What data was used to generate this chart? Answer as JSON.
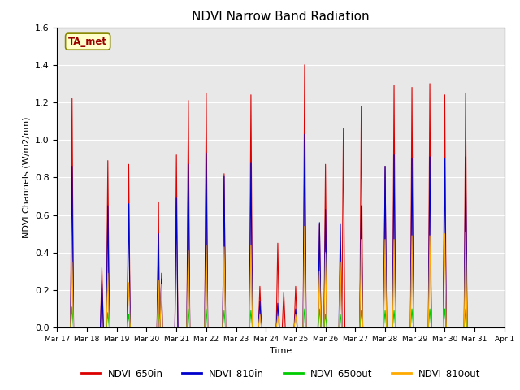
{
  "title": "NDVI Narrow Band Radiation",
  "xlabel": "Time",
  "ylabel": "NDVI Channels (W/m2/nm)",
  "ylim": [
    0,
    1.6
  ],
  "annotation_label": "TA_met",
  "legend_entries": [
    "NDVI_650in",
    "NDVI_810in",
    "NDVI_650out",
    "NDVI_810out"
  ],
  "line_colors": [
    "#dd0000",
    "#0000cc",
    "#00cc00",
    "#ffaa00"
  ],
  "background_color": "#e8e8e8",
  "x_tick_labels": [
    "Mar 17",
    "Mar 18",
    "Mar 19",
    "Mar 20",
    "Mar 21",
    "Mar 22",
    "Mar 23",
    "Mar 24",
    "Mar 25",
    "Mar 26",
    "Mar 27",
    "Mar 28",
    "Mar 29",
    "Mar 30",
    "Mar 31",
    "Apr 1"
  ],
  "x_tick_days": [
    17,
    18,
    19,
    20,
    21,
    22,
    23,
    24,
    25,
    26,
    27,
    28,
    29,
    30,
    31,
    32
  ],
  "series_650in": [
    [
      17.0,
      0.0
    ],
    [
      17.45,
      0.0
    ],
    [
      17.5,
      1.22
    ],
    [
      17.55,
      0.0
    ],
    [
      18.0,
      0.0
    ],
    [
      18.45,
      0.0
    ],
    [
      18.5,
      0.32
    ],
    [
      18.55,
      0.0
    ],
    [
      18.65,
      0.0
    ],
    [
      18.7,
      0.89
    ],
    [
      18.75,
      0.0
    ],
    [
      19.0,
      0.0
    ],
    [
      19.35,
      0.0
    ],
    [
      19.4,
      0.87
    ],
    [
      19.45,
      0.0
    ],
    [
      19.9,
      0.0
    ],
    [
      20.35,
      0.0
    ],
    [
      20.4,
      0.67
    ],
    [
      20.43,
      0.0
    ],
    [
      20.45,
      0.0
    ],
    [
      20.5,
      0.29
    ],
    [
      20.53,
      0.0
    ],
    [
      20.9,
      0.0
    ],
    [
      20.95,
      0.0
    ],
    [
      21.0,
      0.92
    ],
    [
      21.05,
      0.0
    ],
    [
      21.15,
      0.0
    ],
    [
      21.2,
      0.0
    ],
    [
      21.35,
      0.0
    ],
    [
      21.4,
      1.21
    ],
    [
      21.45,
      0.0
    ],
    [
      21.55,
      0.0
    ],
    [
      21.6,
      0.0
    ],
    [
      21.95,
      0.0
    ],
    [
      22.0,
      1.25
    ],
    [
      22.05,
      0.0
    ],
    [
      22.25,
      0.0
    ],
    [
      22.3,
      0.0
    ],
    [
      22.55,
      0.0
    ],
    [
      22.6,
      0.82
    ],
    [
      22.65,
      0.0
    ],
    [
      23.0,
      0.0
    ],
    [
      23.45,
      0.0
    ],
    [
      23.5,
      1.24
    ],
    [
      23.55,
      0.0
    ],
    [
      23.75,
      0.0
    ],
    [
      23.8,
      0.22
    ],
    [
      23.85,
      0.0
    ],
    [
      24.0,
      0.0
    ],
    [
      24.35,
      0.0
    ],
    [
      24.4,
      0.45
    ],
    [
      24.45,
      0.0
    ],
    [
      24.55,
      0.0
    ],
    [
      24.6,
      0.19
    ],
    [
      24.65,
      0.0
    ],
    [
      24.8,
      0.0
    ],
    [
      24.95,
      0.0
    ],
    [
      25.0,
      0.22
    ],
    [
      25.05,
      0.0
    ],
    [
      25.25,
      0.0
    ],
    [
      25.3,
      1.4
    ],
    [
      25.35,
      0.0
    ],
    [
      25.5,
      0.0
    ],
    [
      25.75,
      0.0
    ],
    [
      25.8,
      0.55
    ],
    [
      25.85,
      0.0
    ],
    [
      25.95,
      0.0
    ],
    [
      26.0,
      0.87
    ],
    [
      26.05,
      0.0
    ],
    [
      26.25,
      0.0
    ],
    [
      26.3,
      0.0
    ],
    [
      26.55,
      0.0
    ],
    [
      26.6,
      1.06
    ],
    [
      26.65,
      0.0
    ],
    [
      26.9,
      0.0
    ],
    [
      27.15,
      0.0
    ],
    [
      27.2,
      1.18
    ],
    [
      27.25,
      0.0
    ],
    [
      27.6,
      0.0
    ],
    [
      27.95,
      0.0
    ],
    [
      28.0,
      0.86
    ],
    [
      28.05,
      0.0
    ],
    [
      28.25,
      0.0
    ],
    [
      28.3,
      1.29
    ],
    [
      28.35,
      0.0
    ],
    [
      28.6,
      0.0
    ],
    [
      28.85,
      0.0
    ],
    [
      28.9,
      1.28
    ],
    [
      28.95,
      0.0
    ],
    [
      29.2,
      0.0
    ],
    [
      29.45,
      0.0
    ],
    [
      29.5,
      1.3
    ],
    [
      29.55,
      0.0
    ],
    [
      29.7,
      0.0
    ],
    [
      29.95,
      0.0
    ],
    [
      30.0,
      1.24
    ],
    [
      30.05,
      0.0
    ],
    [
      30.3,
      0.0
    ],
    [
      30.65,
      0.0
    ],
    [
      30.7,
      1.25
    ],
    [
      30.75,
      0.0
    ],
    [
      31.0,
      0.0
    ]
  ],
  "series_810in": [
    [
      17.0,
      0.0
    ],
    [
      17.45,
      0.0
    ],
    [
      17.5,
      0.86
    ],
    [
      17.55,
      0.0
    ],
    [
      18.0,
      0.0
    ],
    [
      18.45,
      0.0
    ],
    [
      18.5,
      0.25
    ],
    [
      18.55,
      0.0
    ],
    [
      18.65,
      0.0
    ],
    [
      18.7,
      0.65
    ],
    [
      18.75,
      0.0
    ],
    [
      19.0,
      0.0
    ],
    [
      19.35,
      0.0
    ],
    [
      19.4,
      0.66
    ],
    [
      19.45,
      0.0
    ],
    [
      19.9,
      0.0
    ],
    [
      20.35,
      0.0
    ],
    [
      20.4,
      0.5
    ],
    [
      20.43,
      0.0
    ],
    [
      20.45,
      0.0
    ],
    [
      20.5,
      0.26
    ],
    [
      20.53,
      0.0
    ],
    [
      20.9,
      0.0
    ],
    [
      20.95,
      0.0
    ],
    [
      21.0,
      0.69
    ],
    [
      21.05,
      0.0
    ],
    [
      21.35,
      0.0
    ],
    [
      21.4,
      0.87
    ],
    [
      21.45,
      0.0
    ],
    [
      21.95,
      0.0
    ],
    [
      22.0,
      0.93
    ],
    [
      22.05,
      0.0
    ],
    [
      22.55,
      0.0
    ],
    [
      22.6,
      0.81
    ],
    [
      22.65,
      0.0
    ],
    [
      23.0,
      0.0
    ],
    [
      23.45,
      0.0
    ],
    [
      23.5,
      0.88
    ],
    [
      23.55,
      0.0
    ],
    [
      23.75,
      0.0
    ],
    [
      23.8,
      0.14
    ],
    [
      23.85,
      0.0
    ],
    [
      24.0,
      0.0
    ],
    [
      24.35,
      0.0
    ],
    [
      24.4,
      0.13
    ],
    [
      24.45,
      0.0
    ],
    [
      24.8,
      0.0
    ],
    [
      24.95,
      0.0
    ],
    [
      25.0,
      0.1
    ],
    [
      25.05,
      0.0
    ],
    [
      25.25,
      0.0
    ],
    [
      25.3,
      1.03
    ],
    [
      25.35,
      0.0
    ],
    [
      25.5,
      0.0
    ],
    [
      25.75,
      0.0
    ],
    [
      25.8,
      0.56
    ],
    [
      25.85,
      0.0
    ],
    [
      25.95,
      0.0
    ],
    [
      26.0,
      0.63
    ],
    [
      26.05,
      0.0
    ],
    [
      26.45,
      0.0
    ],
    [
      26.5,
      0.55
    ],
    [
      26.55,
      0.0
    ],
    [
      26.9,
      0.0
    ],
    [
      27.15,
      0.0
    ],
    [
      27.2,
      0.65
    ],
    [
      27.25,
      0.0
    ],
    [
      27.6,
      0.0
    ],
    [
      27.95,
      0.0
    ],
    [
      28.0,
      0.86
    ],
    [
      28.05,
      0.0
    ],
    [
      28.25,
      0.0
    ],
    [
      28.3,
      0.92
    ],
    [
      28.35,
      0.0
    ],
    [
      28.6,
      0.0
    ],
    [
      28.85,
      0.0
    ],
    [
      28.9,
      0.9
    ],
    [
      28.95,
      0.0
    ],
    [
      29.2,
      0.0
    ],
    [
      29.45,
      0.0
    ],
    [
      29.5,
      0.91
    ],
    [
      29.55,
      0.0
    ],
    [
      29.7,
      0.0
    ],
    [
      29.95,
      0.0
    ],
    [
      30.0,
      0.9
    ],
    [
      30.05,
      0.0
    ],
    [
      30.3,
      0.0
    ],
    [
      30.65,
      0.0
    ],
    [
      30.7,
      0.91
    ],
    [
      30.75,
      0.0
    ],
    [
      31.0,
      0.0
    ]
  ],
  "series_650out": [
    [
      17.0,
      0.0
    ],
    [
      17.45,
      0.0
    ],
    [
      17.5,
      0.11
    ],
    [
      17.55,
      0.0
    ],
    [
      18.0,
      0.0
    ],
    [
      18.65,
      0.0
    ],
    [
      18.7,
      0.08
    ],
    [
      18.75,
      0.0
    ],
    [
      19.0,
      0.0
    ],
    [
      19.35,
      0.0
    ],
    [
      19.4,
      0.07
    ],
    [
      19.45,
      0.0
    ],
    [
      19.9,
      0.0
    ],
    [
      20.35,
      0.0
    ],
    [
      20.4,
      0.07
    ],
    [
      20.45,
      0.0
    ],
    [
      20.9,
      0.0
    ],
    [
      21.35,
      0.0
    ],
    [
      21.4,
      0.1
    ],
    [
      21.45,
      0.0
    ],
    [
      21.95,
      0.0
    ],
    [
      22.0,
      0.1
    ],
    [
      22.05,
      0.0
    ],
    [
      22.55,
      0.0
    ],
    [
      22.6,
      0.09
    ],
    [
      22.65,
      0.0
    ],
    [
      23.0,
      0.0
    ],
    [
      23.45,
      0.0
    ],
    [
      23.5,
      0.09
    ],
    [
      23.55,
      0.0
    ],
    [
      24.0,
      0.0
    ],
    [
      25.25,
      0.0
    ],
    [
      25.3,
      0.1
    ],
    [
      25.35,
      0.0
    ],
    [
      25.5,
      0.0
    ],
    [
      25.75,
      0.0
    ],
    [
      25.8,
      0.1
    ],
    [
      25.85,
      0.0
    ],
    [
      25.95,
      0.0
    ],
    [
      26.0,
      0.07
    ],
    [
      26.05,
      0.0
    ],
    [
      26.45,
      0.0
    ],
    [
      26.5,
      0.07
    ],
    [
      26.55,
      0.0
    ],
    [
      26.9,
      0.0
    ],
    [
      27.15,
      0.0
    ],
    [
      27.2,
      0.09
    ],
    [
      27.25,
      0.0
    ],
    [
      27.6,
      0.0
    ],
    [
      27.95,
      0.0
    ],
    [
      28.0,
      0.09
    ],
    [
      28.05,
      0.0
    ],
    [
      28.25,
      0.0
    ],
    [
      28.3,
      0.09
    ],
    [
      28.35,
      0.0
    ],
    [
      28.6,
      0.0
    ],
    [
      28.85,
      0.0
    ],
    [
      28.9,
      0.1
    ],
    [
      28.95,
      0.0
    ],
    [
      29.2,
      0.0
    ],
    [
      29.45,
      0.0
    ],
    [
      29.5,
      0.1
    ],
    [
      29.55,
      0.0
    ],
    [
      29.7,
      0.0
    ],
    [
      29.95,
      0.0
    ],
    [
      30.0,
      0.1
    ],
    [
      30.05,
      0.0
    ],
    [
      30.3,
      0.0
    ],
    [
      30.65,
      0.0
    ],
    [
      30.7,
      0.1
    ],
    [
      30.75,
      0.0
    ],
    [
      31.0,
      0.0
    ]
  ],
  "series_810out": [
    [
      17.0,
      0.0
    ],
    [
      17.45,
      0.0
    ],
    [
      17.5,
      0.35
    ],
    [
      17.55,
      0.0
    ],
    [
      18.0,
      0.0
    ],
    [
      18.65,
      0.0
    ],
    [
      18.7,
      0.29
    ],
    [
      18.75,
      0.0
    ],
    [
      19.0,
      0.0
    ],
    [
      19.35,
      0.0
    ],
    [
      19.4,
      0.24
    ],
    [
      19.45,
      0.0
    ],
    [
      19.9,
      0.0
    ],
    [
      20.35,
      0.0
    ],
    [
      20.4,
      0.25
    ],
    [
      20.43,
      0.0
    ],
    [
      20.45,
      0.0
    ],
    [
      20.5,
      0.23
    ],
    [
      20.53,
      0.0
    ],
    [
      20.9,
      0.0
    ],
    [
      21.35,
      0.0
    ],
    [
      21.4,
      0.41
    ],
    [
      21.45,
      0.0
    ],
    [
      21.95,
      0.0
    ],
    [
      22.0,
      0.44
    ],
    [
      22.05,
      0.0
    ],
    [
      22.55,
      0.0
    ],
    [
      22.6,
      0.43
    ],
    [
      22.65,
      0.0
    ],
    [
      23.0,
      0.0
    ],
    [
      23.45,
      0.0
    ],
    [
      23.5,
      0.44
    ],
    [
      23.55,
      0.0
    ],
    [
      23.75,
      0.0
    ],
    [
      23.8,
      0.07
    ],
    [
      23.85,
      0.0
    ],
    [
      24.0,
      0.0
    ],
    [
      24.35,
      0.0
    ],
    [
      24.4,
      0.06
    ],
    [
      24.45,
      0.0
    ],
    [
      24.8,
      0.0
    ],
    [
      24.95,
      0.0
    ],
    [
      25.0,
      0.07
    ],
    [
      25.05,
      0.0
    ],
    [
      25.25,
      0.0
    ],
    [
      25.3,
      0.54
    ],
    [
      25.35,
      0.0
    ],
    [
      25.5,
      0.0
    ],
    [
      25.75,
      0.0
    ],
    [
      25.8,
      0.3
    ],
    [
      25.85,
      0.0
    ],
    [
      25.95,
      0.0
    ],
    [
      26.0,
      0.4
    ],
    [
      26.05,
      0.0
    ],
    [
      26.45,
      0.0
    ],
    [
      26.5,
      0.35
    ],
    [
      26.55,
      0.0
    ],
    [
      26.9,
      0.0
    ],
    [
      27.15,
      0.0
    ],
    [
      27.2,
      0.47
    ],
    [
      27.25,
      0.0
    ],
    [
      27.6,
      0.0
    ],
    [
      27.95,
      0.0
    ],
    [
      28.0,
      0.47
    ],
    [
      28.05,
      0.0
    ],
    [
      28.25,
      0.0
    ],
    [
      28.3,
      0.47
    ],
    [
      28.35,
      0.0
    ],
    [
      28.6,
      0.0
    ],
    [
      28.85,
      0.0
    ],
    [
      28.9,
      0.49
    ],
    [
      28.95,
      0.0
    ],
    [
      29.2,
      0.0
    ],
    [
      29.45,
      0.0
    ],
    [
      29.5,
      0.49
    ],
    [
      29.55,
      0.0
    ],
    [
      29.7,
      0.0
    ],
    [
      29.95,
      0.0
    ],
    [
      30.0,
      0.5
    ],
    [
      30.05,
      0.0
    ],
    [
      30.3,
      0.0
    ],
    [
      30.65,
      0.0
    ],
    [
      30.7,
      0.51
    ],
    [
      30.75,
      0.0
    ],
    [
      31.0,
      0.0
    ]
  ]
}
